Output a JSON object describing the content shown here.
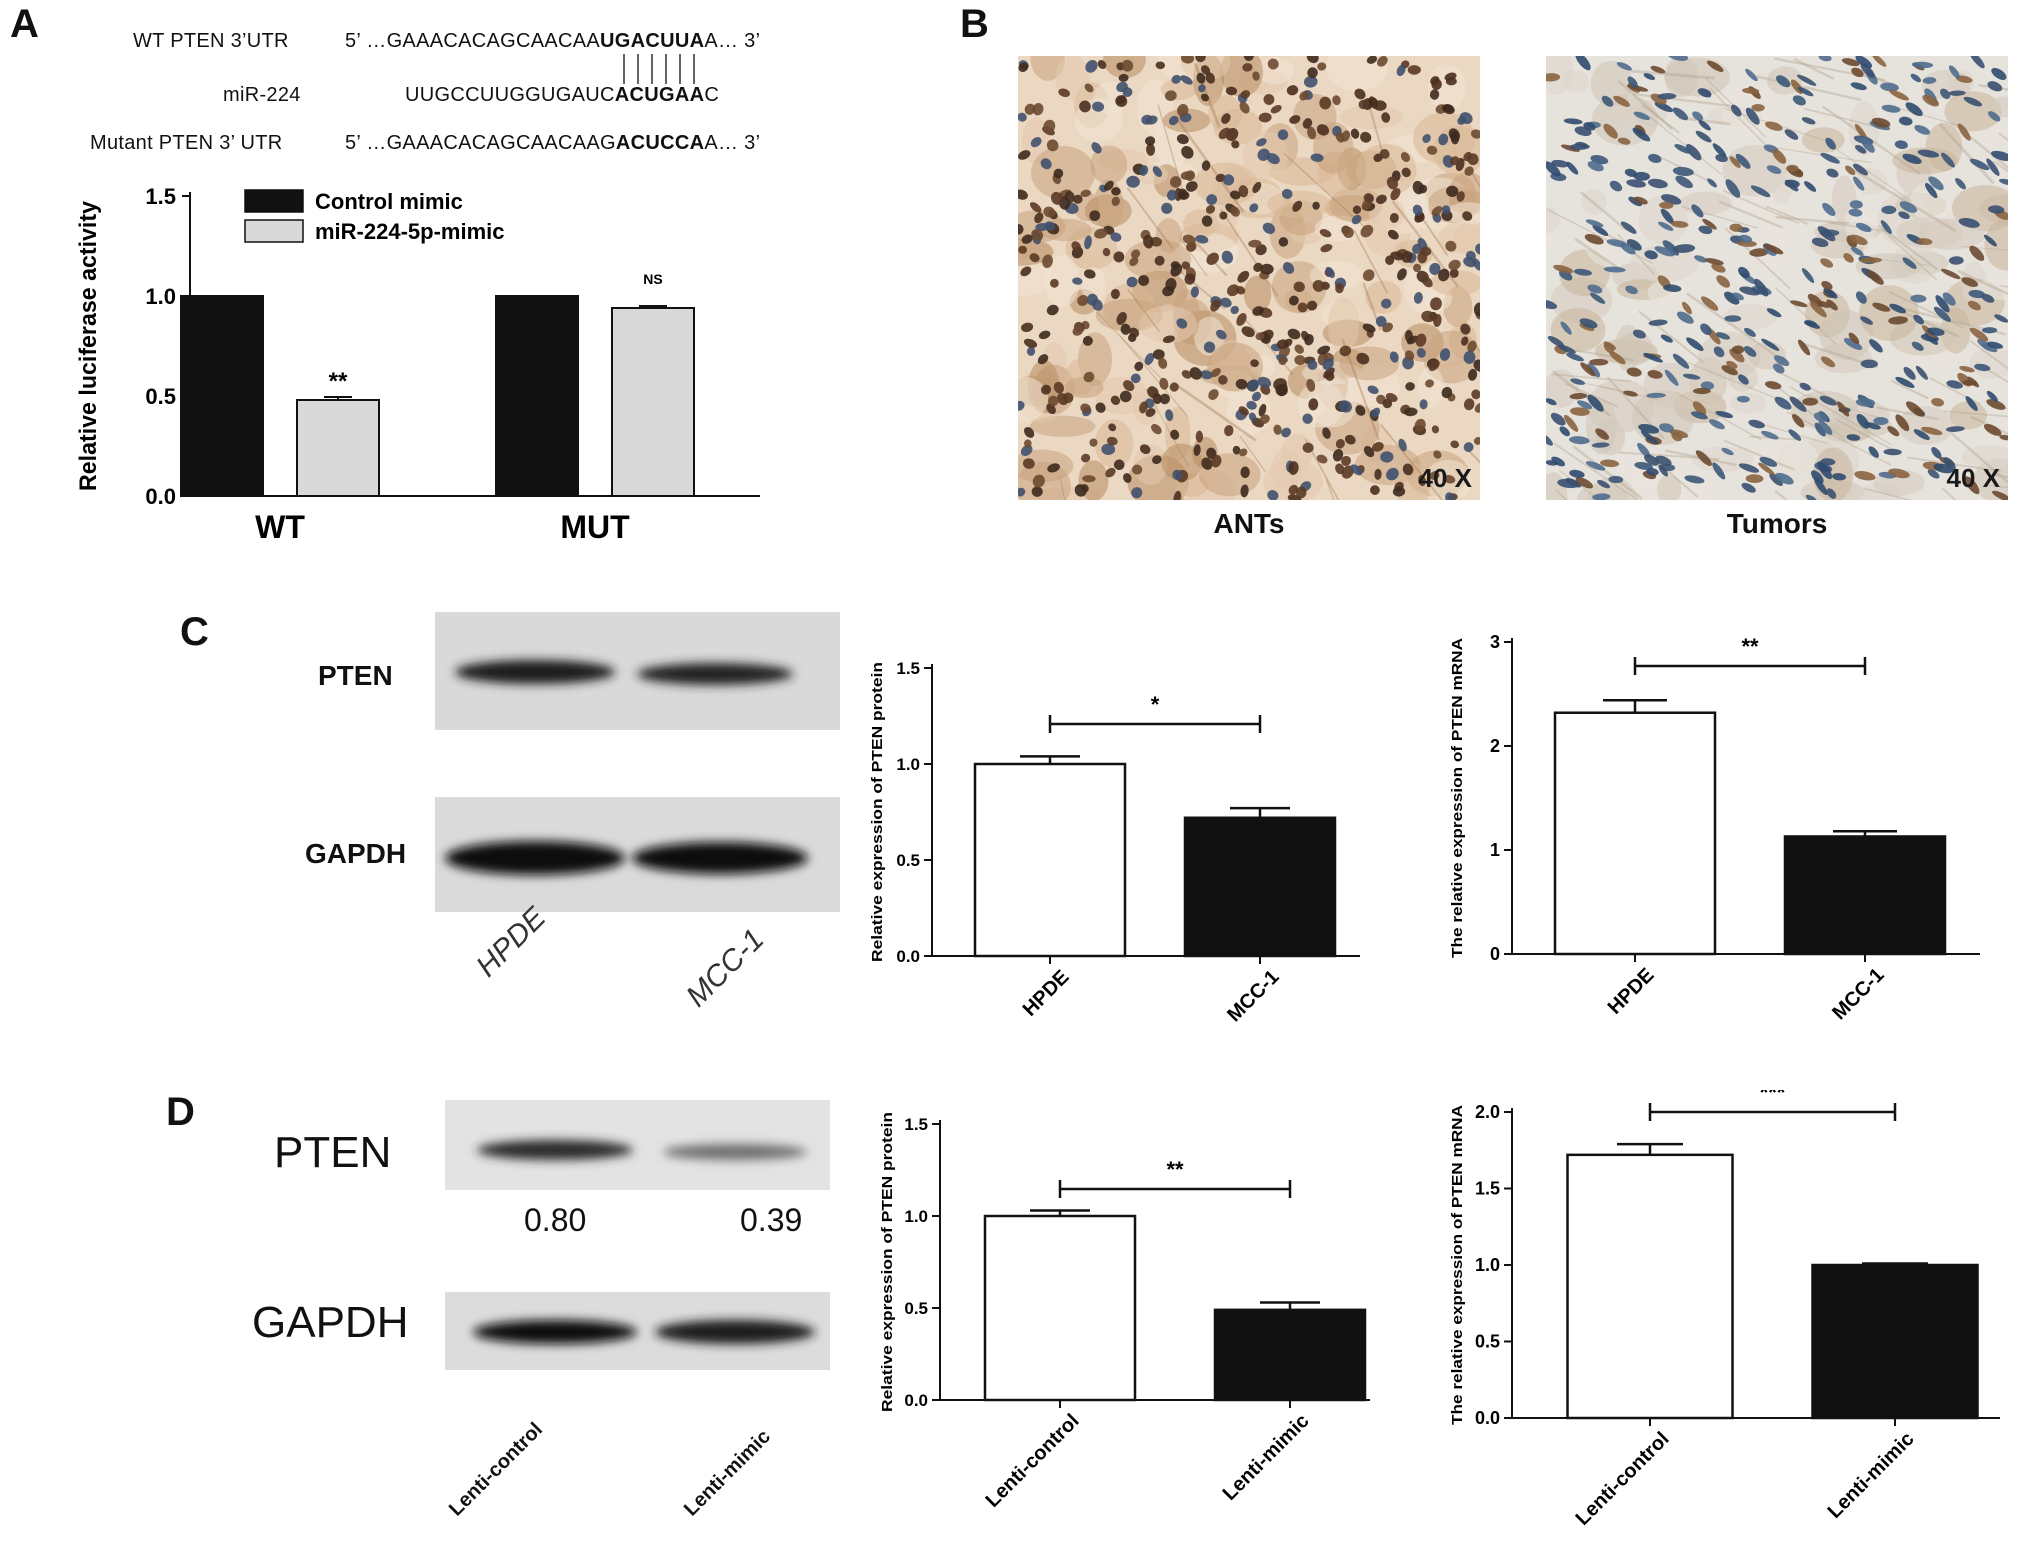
{
  "panels": {
    "a": "A",
    "b": "B",
    "c": "C",
    "d": "D"
  },
  "panel_a": {
    "seq_rows": [
      {
        "label": "WT PTEN 3’UTR",
        "prefix": "5’ …GAAACACAGCAACAA",
        "bold": "UGACUUA",
        "suffix": "A… 3’"
      },
      {
        "label": "miR-224",
        "prefix": "UUGCCUUGGUGAUC",
        "bold": "ACUGAA",
        "suffix": "C"
      },
      {
        "label": "Mutant PTEN 3’ UTR",
        "prefix": "5’ …GAAACACAGCAACAAG",
        "bold": "ACUCCA",
        "suffix": "A… 3’"
      }
    ]
  },
  "panel_b": {
    "images": [
      {
        "label": "ANTs",
        "magnification": "40 X"
      },
      {
        "label": "Tumors",
        "magnification": "40 X"
      }
    ]
  },
  "blot_c": {
    "bands": [
      "PTEN",
      "GAPDH"
    ],
    "lanes": [
      "HPDE",
      "MCC-1"
    ]
  },
  "blot_d": {
    "bands": [
      "PTEN",
      "GAPDH"
    ],
    "quant": [
      "0.80",
      "0.39"
    ],
    "lanes": [
      "Lenti-control",
      "Lenti-mimic"
    ]
  },
  "colors": {
    "black_bar": "#111111",
    "gray_bar": "#d9d9d9",
    "white_bar": "#ffffff"
  },
  "chart_data": [
    {
      "id": "A",
      "type": "bar",
      "categories": [
        "WT",
        "MUT"
      ],
      "series": [
        {
          "name": "Control mimic",
          "values": [
            1.0,
            1.0
          ],
          "errors": [
            0,
            0
          ]
        },
        {
          "name": "miR-224-5p-mimic",
          "values": [
            0.48,
            0.94
          ],
          "errors": [
            0.015,
            0.01
          ]
        }
      ],
      "annotations": [
        "**",
        "NS"
      ],
      "ylabel": "Relative luciferase activity",
      "ylim": [
        0,
        1.5
      ],
      "yticks": [
        "0.0",
        "0.5",
        "1.0",
        "1.5"
      ],
      "legend": "top-left"
    },
    {
      "id": "C1",
      "type": "bar",
      "categories": [
        "HPDE",
        "MCC-1"
      ],
      "values": [
        1.0,
        0.72
      ],
      "errors": [
        0.04,
        0.05
      ],
      "significance": "*",
      "ylabel": "Relative expression of PTEN  protein",
      "ylim": [
        0,
        1.5
      ],
      "yticks": [
        "0.0",
        "0.5",
        "1.0",
        "1.5"
      ]
    },
    {
      "id": "C2",
      "type": "bar",
      "categories": [
        "HPDE",
        "MCC-1"
      ],
      "values": [
        2.32,
        1.13
      ],
      "errors": [
        0.12,
        0.05
      ],
      "significance": "**",
      "ylabel": "The relative expression of PTEN mRNA",
      "ylim": [
        0,
        3
      ],
      "yticks": [
        "0",
        "1",
        "2",
        "3"
      ]
    },
    {
      "id": "D1",
      "type": "bar",
      "categories": [
        "Lenti-control",
        "Lenti-mimic"
      ],
      "values": [
        1.0,
        0.49
      ],
      "errors": [
        0.03,
        0.04
      ],
      "significance": "**",
      "ylabel": "Relative expression of PTEN  protein",
      "ylim": [
        0,
        1.5
      ],
      "yticks": [
        "0.0",
        "0.5",
        "1.0",
        "1.5"
      ]
    },
    {
      "id": "D2",
      "type": "bar",
      "categories": [
        "Lenti-control",
        "Lenti-mimic"
      ],
      "values": [
        1.72,
        1.0
      ],
      "errors": [
        0.07,
        0.01
      ],
      "significance": "***",
      "ylabel": "The relative expression of PTEN mRNA",
      "ylim": [
        0,
        2.0
      ],
      "yticks": [
        "0.0",
        "0.5",
        "1.0",
        "1.5",
        "2.0"
      ]
    }
  ]
}
